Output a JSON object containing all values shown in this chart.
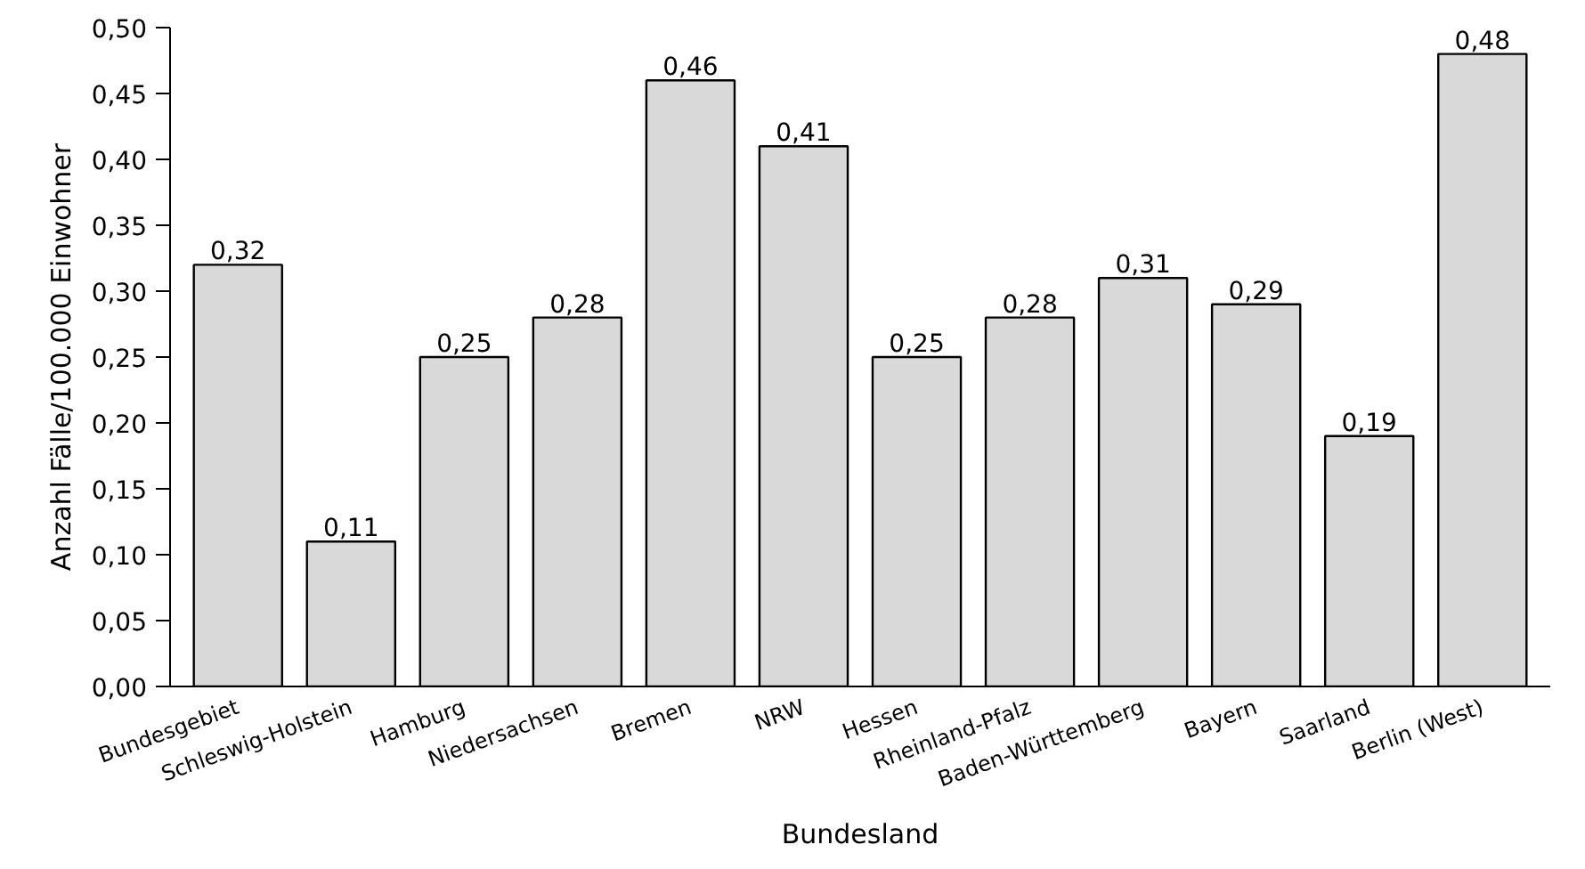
{
  "chart_data": {
    "type": "bar",
    "xlabel": "Bundesland",
    "ylabel": "Anzahl Fälle/100.000 Einwohner",
    "categories": [
      "Bundesgebiet",
      "Schleswig-Holstein",
      "Hamburg",
      "Niedersachsen",
      "Bremen",
      "NRW",
      "Hessen",
      "Rheinland-Pfalz",
      "Baden-Württemberg",
      "Bayern",
      "Saarland",
      "Berlin (West)"
    ],
    "values": [
      0.32,
      0.11,
      0.25,
      0.28,
      0.46,
      0.41,
      0.25,
      0.28,
      0.31,
      0.29,
      0.19,
      0.48
    ],
    "value_labels": [
      "0,32",
      "0,11",
      "0,25",
      "0,28",
      "0,46",
      "0,41",
      "0,25",
      "0,28",
      "0,31",
      "0,29",
      "0,19",
      "0,48"
    ],
    "color": "#d9d9d9",
    "ylim": [
      0,
      0.5
    ],
    "yticks": [
      {
        "value": 0,
        "label": "0,00"
      },
      {
        "value": 0.05,
        "label": "0,05"
      },
      {
        "value": 0.1,
        "label": "0,10"
      },
      {
        "value": 0.15,
        "label": "0,15"
      },
      {
        "value": 0.2,
        "label": "0,20"
      },
      {
        "value": 0.25,
        "label": "0,25"
      },
      {
        "value": 0.3,
        "label": "0,30"
      },
      {
        "value": 0.35,
        "label": "0,35"
      },
      {
        "value": 0.4,
        "label": "0,40"
      },
      {
        "value": 0.45,
        "label": "0,45"
      },
      {
        "value": 0.5,
        "label": "0,50"
      }
    ],
    "grid": false
  }
}
